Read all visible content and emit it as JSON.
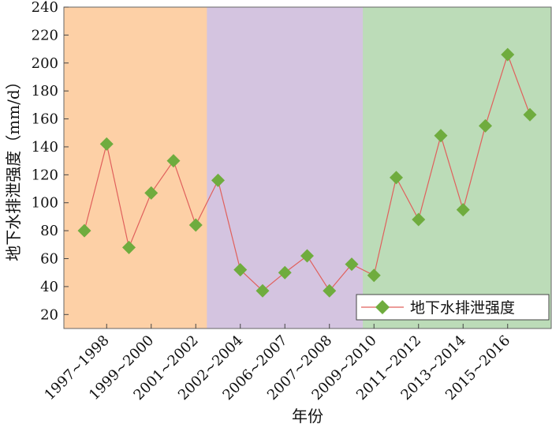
{
  "chart_data": {
    "type": "line",
    "xlabel": "年份",
    "ylabel": "地下水排泄强度（mm/d）",
    "ylim": [
      10,
      240
    ],
    "yticks": [
      20,
      40,
      60,
      80,
      100,
      120,
      140,
      160,
      180,
      200,
      220,
      240
    ],
    "tick_labels": [
      "1997~1998",
      "1999~2000",
      "2001~2002",
      "2002~2004",
      "2006~2007",
      "2007~2008",
      "2009~2010",
      "2011~2012",
      "2013~2014",
      "2015~2016"
    ],
    "legend": {
      "position": "right, lower middle",
      "entries": [
        "地下水排泄强度"
      ]
    },
    "grid": false,
    "background_bands": [
      {
        "from_point": 1,
        "to_point": 7,
        "color": "#fdd0a6"
      },
      {
        "from_point": 7,
        "to_point": 14,
        "color": "#d4c4e0"
      },
      {
        "from_point": 14,
        "to_point": 21,
        "color": "#bcdcb8"
      }
    ],
    "series": [
      {
        "name": "地下水排泄强度",
        "line_color": "#e0605c",
        "marker_color": "#6fac3e",
        "marker": "diamond",
        "x": [
          1,
          2,
          3,
          4,
          5,
          6,
          7,
          8,
          9,
          10,
          11,
          12,
          13,
          14,
          15,
          16,
          17,
          18,
          19,
          20,
          21
        ],
        "values": [
          80,
          142,
          68,
          107,
          130,
          84,
          116,
          52,
          37,
          50,
          62,
          37,
          56,
          48,
          118,
          88,
          148,
          95,
          155,
          206,
          163
        ]
      }
    ]
  }
}
